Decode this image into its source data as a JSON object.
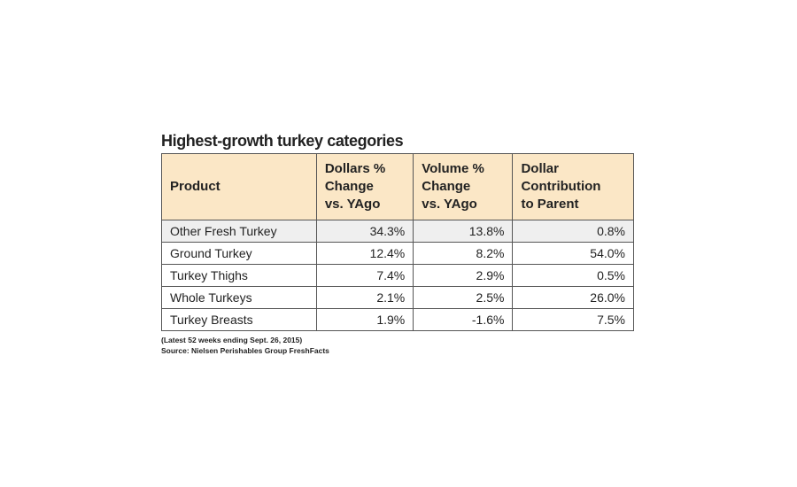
{
  "title": "Highest-growth turkey categories",
  "table": {
    "header": [
      [
        "Product"
      ],
      [
        "Dollars %",
        "Change",
        "vs. YAgo"
      ],
      [
        "Volume %",
        "Change",
        "vs. YAgo"
      ],
      [
        "Dollar",
        "Contribution",
        "to Parent"
      ]
    ],
    "rows": [
      [
        "Other Fresh Turkey",
        "34.3%",
        "13.8%",
        "0.8%"
      ],
      [
        "Ground Turkey",
        "12.4%",
        "8.2%",
        "54.0%"
      ],
      [
        "Turkey Thighs",
        "7.4%",
        "2.9%",
        "0.5%"
      ],
      [
        "Whole Turkeys",
        "2.1%",
        "2.5%",
        "26.0%"
      ],
      [
        "Turkey Breasts",
        "1.9%",
        "-1.6%",
        "7.5%"
      ]
    ]
  },
  "notes": [
    "(Latest 52 weeks ending Sept. 26, 2015)",
    "Source: Nielsen Perishables Group FreshFacts"
  ]
}
